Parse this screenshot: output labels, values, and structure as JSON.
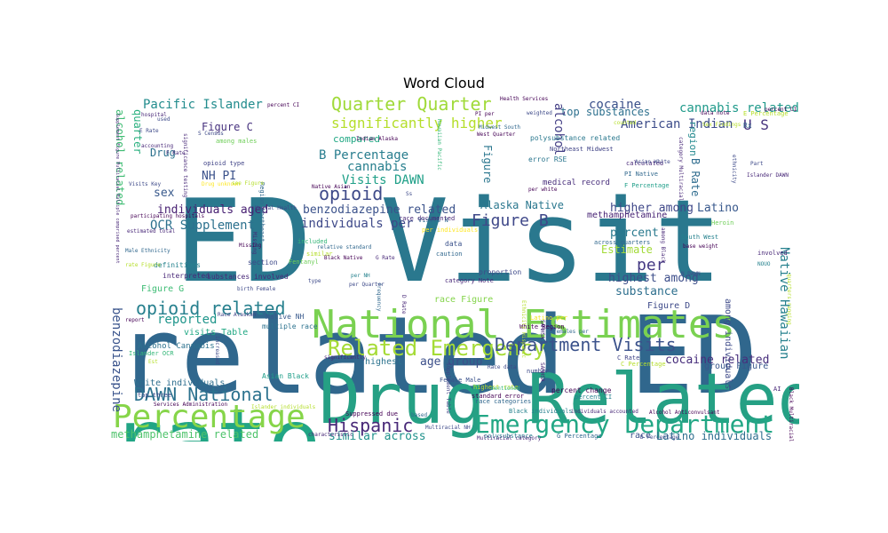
{
  "chart_data": {
    "type": "wordcloud",
    "title": "Word Cloud",
    "words": [
      {
        "text": "ED Visit",
        "color": "#2a788e"
      },
      {
        "text": "related ED",
        "color": "#30678d"
      },
      {
        "text": "rate",
        "color": "#21a585"
      },
      {
        "text": "Drug Related",
        "color": "#25a084"
      },
      {
        "text": "National Estimates",
        "color": "#7ad151"
      },
      {
        "text": "Percentage",
        "color": "#86d549"
      },
      {
        "text": "Emergency Department",
        "color": "#22a785"
      },
      {
        "text": "Related Emergency",
        "color": "#a5db36"
      },
      {
        "text": "Department Visits",
        "color": "#3b528b"
      },
      {
        "text": "DAWN National",
        "color": "#2c728e"
      },
      {
        "text": "Hispanic",
        "color": "#482878"
      },
      {
        "text": "opioid related",
        "color": "#27808e"
      },
      {
        "text": "Quarter Quarter",
        "color": "#a0da39"
      },
      {
        "text": "significantly higher",
        "color": "#b5de2b"
      },
      {
        "text": "opioid",
        "color": "#3e4a89"
      },
      {
        "text": "Figure B",
        "color": "#3f4889"
      },
      {
        "text": "per",
        "color": "#443983"
      },
      {
        "text": "Pacific Islander",
        "color": "#228c8d"
      },
      {
        "text": "cocaine",
        "color": "#3b518b"
      },
      {
        "text": "American Indian",
        "color": "#3d4d8a"
      },
      {
        "text": "U S",
        "color": "#46337e"
      },
      {
        "text": "cannabis related",
        "color": "#1f9a8a"
      },
      {
        "text": "top substances",
        "color": "#2d708e"
      },
      {
        "text": "alcohol",
        "color": "#433e85"
      },
      {
        "text": "Native Hawaiian",
        "color": "#26818e"
      },
      {
        "text": "B Percentage",
        "color": "#287d8e"
      },
      {
        "text": "cannabis",
        "color": "#277f8e"
      },
      {
        "text": "Visits DAWN",
        "color": "#1fa088"
      },
      {
        "text": "benzodiazepine related",
        "color": "#3b528b"
      },
      {
        "text": "individuals per",
        "color": "#3e4989"
      },
      {
        "text": "individuals aged",
        "color": "#482173"
      },
      {
        "text": "OCR Supplement",
        "color": "#2c718e"
      },
      {
        "text": "higher among",
        "color": "#3f4788"
      },
      {
        "text": "Latino",
        "color": "#38588c"
      },
      {
        "text": "Alaska Native",
        "color": "#2a778e"
      },
      {
        "text": "percent",
        "color": "#29798e"
      },
      {
        "text": "Estimate",
        "color": "#a2da37"
      },
      {
        "text": "highest among",
        "color": "#3d4e8a"
      },
      {
        "text": "substance",
        "color": "#2e6f8e"
      },
      {
        "text": "reported",
        "color": "#1f958b"
      },
      {
        "text": "age group",
        "color": "#3c4f8a"
      },
      {
        "text": "cocaine related",
        "color": "#472e7c"
      },
      {
        "text": "similar across",
        "color": "#20928c"
      },
      {
        "text": "methamphetamine related",
        "color": "#4ec36b"
      },
      {
        "text": "Latino individuals",
        "color": "#2e6e8e"
      },
      {
        "text": "benzodiazepine",
        "color": "#3a548c"
      },
      {
        "text": "alcohol related",
        "color": "#3fbc73"
      },
      {
        "text": "quarter",
        "color": "#2ab07f"
      },
      {
        "text": "Figure C",
        "color": "#46317e"
      },
      {
        "text": "NH PI",
        "color": "#3b528b"
      },
      {
        "text": "sex",
        "color": "#38598c"
      },
      {
        "text": "Drug",
        "color": "#2c718e"
      },
      {
        "text": "compared",
        "color": "#22a884"
      },
      {
        "text": "region",
        "color": "#23898e"
      },
      {
        "text": "B Rate",
        "color": "#2f6c8e"
      },
      {
        "text": "Figure",
        "color": "#2a768e"
      },
      {
        "text": "methamphetamine",
        "color": "#482475"
      },
      {
        "text": "visits Table",
        "color": "#22a884"
      },
      {
        "text": "White individuals",
        "color": "#2e6e8e"
      },
      {
        "text": "Alcohol Cannabis",
        "color": "#2c728e"
      },
      {
        "text": "Figure G",
        "color": "#3dbc74"
      },
      {
        "text": "Figure D",
        "color": "#3e4a89"
      },
      {
        "text": "race Figure",
        "color": "#84d44b"
      },
      {
        "text": "medical record",
        "color": "#472d7b"
      },
      {
        "text": "error RSE",
        "color": "#2a768e"
      },
      {
        "text": "highest",
        "color": "#2c738e"
      },
      {
        "text": "group Figure",
        "color": "#39568c"
      },
      {
        "text": "race",
        "color": "#3b528b"
      },
      {
        "text": "Native NH",
        "color": "#38598c"
      },
      {
        "text": "multiple race",
        "color": "#2c728e"
      },
      {
        "text": "Asian Black",
        "color": "#1f9e89"
      },
      {
        "text": "percent change",
        "color": "#440154"
      },
      {
        "text": "Latino per",
        "color": "#f1e51d"
      },
      {
        "text": "White Region",
        "color": "#440154"
      },
      {
        "text": "Female Male",
        "color": "#3b528b"
      },
      {
        "text": "substances involved",
        "color": "#482878"
      },
      {
        "text": "section",
        "color": "#3e4a89"
      },
      {
        "text": "interpreted",
        "color": "#482878"
      },
      {
        "text": "definitions",
        "color": "#26828e"
      },
      {
        "text": "Visits N",
        "color": "#31688e"
      },
      {
        "text": "per individuals",
        "color": "#fde725"
      },
      {
        "text": "data",
        "color": "#3b528b"
      },
      {
        "text": "included",
        "color": "#35b779"
      },
      {
        "text": "Fentanyl",
        "color": "#6ece58"
      },
      {
        "text": "similar",
        "color": "#b5de2b"
      },
      {
        "text": "caution",
        "color": "#31688e"
      },
      {
        "text": "proportion",
        "color": "#3e4a89"
      },
      {
        "text": "category Note",
        "color": "#482878"
      },
      {
        "text": "Black individuals",
        "color": "#26828e"
      },
      {
        "text": "Suppressed due",
        "color": "#440154"
      },
      {
        "text": "polysubstance",
        "color": "#2a788e"
      },
      {
        "text": "G Percentage",
        "color": "#31688e"
      },
      {
        "text": "Visits DAWN ",
        "color": "#1fa088"
      },
      {
        "text": "Northeast Midwest",
        "color": "#414487"
      },
      {
        "text": "polysubstance related",
        "color": "#2a788e"
      },
      {
        "text": "calculated",
        "color": "#482878"
      },
      {
        "text": "PI Native",
        "color": "#31688e"
      },
      {
        "text": "F Percentage",
        "color": "#1f9e89"
      },
      {
        "text": "Heroin",
        "color": "#6ece58"
      },
      {
        "text": "South West",
        "color": "#26828e"
      },
      {
        "text": "base weight",
        "color": "#440154"
      },
      {
        "text": "among individuals",
        "color": "#3e4a89"
      },
      {
        "text": "involved",
        "color": "#482878"
      },
      {
        "text": "NOUO",
        "color": "#26828e"
      },
      {
        "text": "Rx",
        "color": "#31688e"
      },
      {
        "text": "Part",
        "color": "#3e4a89"
      },
      {
        "text": "Islander DAWN",
        "color": "#482878"
      },
      {
        "text": "data note",
        "color": "#440154"
      },
      {
        "text": "E Percentage",
        "color": "#b5de2b"
      },
      {
        "text": "Health Services",
        "color": "#440154"
      },
      {
        "text": "weighted",
        "color": "#3e4a89"
      },
      {
        "text": "Midwest South",
        "color": "#31688e"
      },
      {
        "text": "percent CI",
        "color": "#440154"
      },
      {
        "text": "hospital",
        "color": "#482878"
      },
      {
        "text": "E Rate",
        "color": "#3e4a89"
      },
      {
        "text": "among males",
        "color": "#6ece58"
      },
      {
        "text": "opioid type",
        "color": "#414487"
      },
      {
        "text": "Drug unknown",
        "color": "#fde725"
      },
      {
        "text": "Region Northeast",
        "color": "#31688e"
      },
      {
        "text": "Mental Health",
        "color": "#3e4a89"
      },
      {
        "text": "estimated total",
        "color": "#482878"
      },
      {
        "text": "Male Ethnicity",
        "color": "#31688e"
      },
      {
        "text": "Race Alaskan",
        "color": "#414487"
      },
      {
        "text": "report",
        "color": "#440154"
      },
      {
        "text": "Islander OCR",
        "color": "#35b779"
      },
      {
        "text": "top three",
        "color": "#3e4a89"
      },
      {
        "text": "Services Administration",
        "color": "#440154"
      },
      {
        "text": "Islander individuals",
        "color": "#b5de2b"
      },
      {
        "text": "race documented",
        "color": "#482878"
      },
      {
        "text": "race categories",
        "color": "#31688e"
      },
      {
        "text": "highest rate",
        "color": "#b5de2b"
      },
      {
        "text": "standard error",
        "color": "#440154"
      },
      {
        "text": "significantly",
        "color": "#482878"
      },
      {
        "text": "number",
        "color": "#3e4a89"
      },
      {
        "text": "females per",
        "color": "#31688e"
      },
      {
        "text": "C Rate",
        "color": "#414487"
      },
      {
        "text": "C Percentage",
        "color": "#b5de2b"
      },
      {
        "text": "Alcohol Anticonvulsant",
        "color": "#440154"
      },
      {
        "text": "individuals accounted",
        "color": "#482878"
      },
      {
        "text": "percent CI ",
        "color": "#26828e"
      },
      {
        "text": "West Quarter",
        "color": "#440154"
      },
      {
        "text": "N DAWN",
        "color": "#3e4a89"
      },
      {
        "text": "across quarters",
        "color": "#31688e"
      },
      {
        "text": "characteristic",
        "color": "#482878"
      },
      {
        "text": "based",
        "color": "#31688e"
      },
      {
        "text": "Multiracial NH",
        "color": "#3e4a89"
      },
      {
        "text": "G Rate",
        "color": "#482878"
      },
      {
        "text": "per NH",
        "color": "#26828e"
      },
      {
        "text": "Black Native",
        "color": "#440154"
      },
      {
        "text": "D Rate",
        "color": "#482878"
      },
      {
        "text": "type",
        "color": "#3e4a89"
      },
      {
        "text": "frequency",
        "color": "#31688e"
      },
      {
        "text": "Supplement Table",
        "color": "#414487"
      },
      {
        "text": "Race data",
        "color": "#3e4a89"
      },
      {
        "text": "mentioned",
        "color": "#35b779"
      },
      {
        "text": "AI",
        "color": "#482878"
      },
      {
        "text": "counted",
        "color": "#b5de2b"
      },
      {
        "text": "category Multiracial",
        "color": "#482878"
      },
      {
        "text": "Asian White",
        "color": "#3e4a89"
      },
      {
        "text": "Native Asian",
        "color": "#440154"
      },
      {
        "text": "S Census",
        "color": "#3e4a89"
      },
      {
        "text": "significance testing",
        "color": "#482878"
      },
      {
        "text": "Visits Key",
        "color": "#3e4a89"
      },
      {
        "text": "per white",
        "color": "#440154"
      },
      {
        "text": "birth Female",
        "color": "#3e4a89"
      },
      {
        "text": "Missing",
        "color": "#482878"
      },
      {
        "text": "Supplement Figure Multiracial Multiple comprised percent",
        "color": "#482878"
      },
      {
        "text": "Hawaiian Pacific",
        "color": "#35b779"
      },
      {
        "text": "Black Multiracial",
        "color": "#440154"
      },
      {
        "text": "quarters ranging",
        "color": "#b5de2b"
      },
      {
        "text": "ethnicity",
        "color": "#3e4a89"
      },
      {
        "text": "PI per",
        "color": "#440154"
      },
      {
        "text": "Ethnicity Hispanic",
        "color": "#b5de2b"
      },
      {
        "text": "SAMHSA",
        "color": "#482878"
      },
      {
        "text": "participating hospitals",
        "color": "#440154"
      },
      {
        "text": "accounting",
        "color": "#482878"
      },
      {
        "text": "used",
        "color": "#3e4a89"
      },
      {
        "text": "F Rate",
        "color": "#482878"
      },
      {
        "text": "Indian Alaska",
        "color": "#440154"
      },
      {
        "text": "Ss",
        "color": "#3e4a89"
      },
      {
        "text": "among Black",
        "color": "#482878"
      },
      {
        "text": "increased",
        "color": "#3e4a89"
      },
      {
        "text": "see Figure",
        "color": "#b5de2b"
      },
      {
        "text": "relative standard",
        "color": "#31688e"
      },
      {
        "text": "SAMHSA ",
        "color": "#482878"
      },
      {
        "text": "rate Figure",
        "color": "#b5de2b"
      },
      {
        "text": "Est",
        "color": "#b5de2b"
      },
      {
        "text": "per Quarter",
        "color": "#3e4a89"
      },
      {
        "text": "Multiracial category",
        "color": "#482878"
      },
      {
        "text": "D Percentage",
        "color": "#3e4a89"
      },
      {
        "text": "Missing ",
        "color": "#440154"
      },
      {
        "text": "Sex Findings",
        "color": "#b5de2b"
      },
      {
        "text": "percent CI  ",
        "color": "#440154"
      }
    ]
  }
}
